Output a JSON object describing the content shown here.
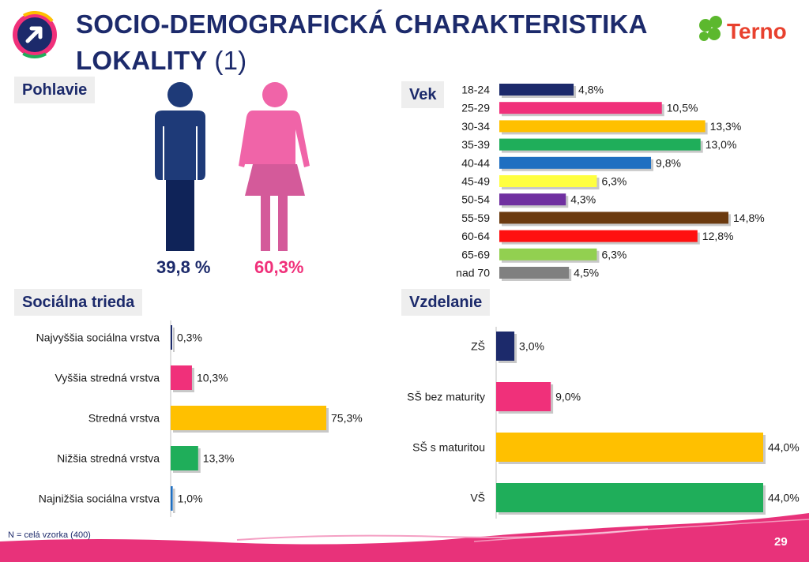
{
  "slide": {
    "title_main": "SOCIO-DEMOGRAFICKÁ CHARAKTERISTIKA LOKALITY",
    "title_suffix": "(1)",
    "brand": "Terno",
    "footnote": "N = celá vzorka (400)",
    "page_number": "29"
  },
  "colors": {
    "navy": "#1c2a6b",
    "pink": "#f0307a",
    "male": "#1e3a78",
    "female": "#f064a8",
    "footer_band": "#e8327a"
  },
  "chart_data": [
    {
      "id": "pohlavie",
      "type": "pictogram",
      "title": "Pohlavie",
      "categories": [
        "Muži",
        "Ženy"
      ],
      "values": [
        39.8,
        60.3
      ],
      "labels": [
        "39,8 %",
        "60,3%"
      ]
    },
    {
      "id": "vek",
      "type": "bar",
      "orientation": "horizontal",
      "title": "Vek",
      "categories": [
        "18-24",
        "25-29",
        "30-34",
        "35-39",
        "40-44",
        "45-49",
        "50-54",
        "55-59",
        "60-64",
        "65-69",
        "nad 70"
      ],
      "values": [
        4.8,
        10.5,
        13.3,
        13.0,
        9.8,
        6.3,
        4.3,
        14.8,
        12.8,
        6.3,
        4.5
      ],
      "labels": [
        "4,8%",
        "10,5%",
        "13,3%",
        "13,0%",
        "9,8%",
        "6,3%",
        "4,3%",
        "14,8%",
        "12,8%",
        "6,3%",
        "4,5%"
      ],
      "colors": [
        "#1c2a6b",
        "#f0307a",
        "#ffc000",
        "#1fae5a",
        "#1f6fc1",
        "#ffff40",
        "#7030a0",
        "#6b3a0f",
        "#ff1010",
        "#92d050",
        "#808080"
      ]
    },
    {
      "id": "socialna_trieda",
      "type": "bar",
      "orientation": "horizontal",
      "title": "Sociálna trieda",
      "categories": [
        "Najvyššia sociálna vrstva",
        "Vyššia stredná vrstva",
        "Stredná vrstva",
        "Nižšia stredná vrstva",
        "Najnižšia sociálna vrstva"
      ],
      "values": [
        0.3,
        10.3,
        75.3,
        13.3,
        1.0
      ],
      "labels": [
        "0,3%",
        "10,3%",
        "75,3%",
        "13,3%",
        "1,0%"
      ],
      "colors": [
        "#1c2a6b",
        "#f0307a",
        "#ffc000",
        "#1fae5a",
        "#1f6fc1"
      ]
    },
    {
      "id": "vzdelanie",
      "type": "bar",
      "orientation": "horizontal",
      "title": "Vzdelanie",
      "categories": [
        "ZŠ",
        "SŠ bez maturity",
        "SŠ s maturitou",
        "VŠ"
      ],
      "values": [
        3.0,
        9.0,
        44.0,
        44.0
      ],
      "labels": [
        "3,0%",
        "9,0%",
        "44,0%",
        "44,0%"
      ],
      "colors": [
        "#1c2a6b",
        "#f0307a",
        "#ffc000",
        "#1fae5a"
      ]
    }
  ]
}
